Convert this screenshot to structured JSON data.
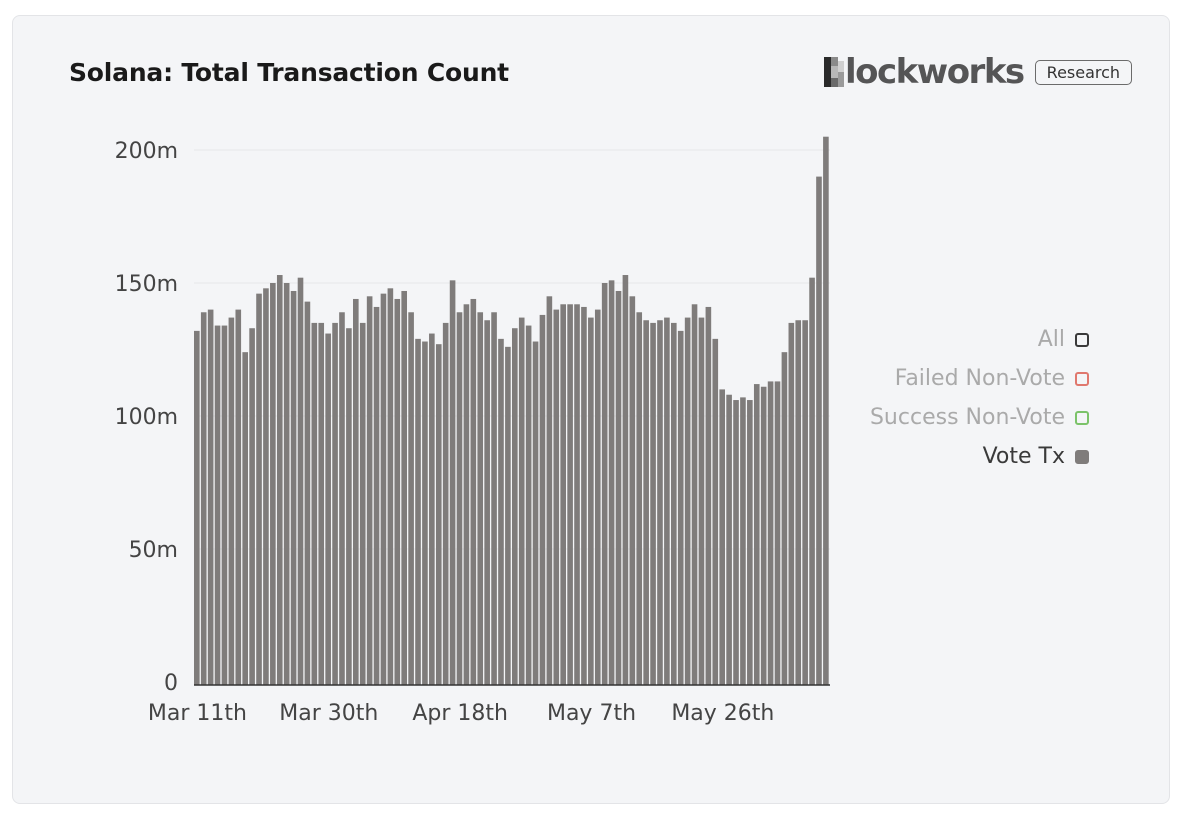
{
  "card": {
    "title": "Solana: Total Transaction Count"
  },
  "brand": {
    "logo_text": "lockworks",
    "logo_mark": "blockworks-b-mark",
    "badge": "Research"
  },
  "legend": [
    {
      "label": "All",
      "color": "#3a3a3a",
      "text_color": "#aaaaaa",
      "filled": false
    },
    {
      "label": "Failed Non-Vote",
      "color": "#e0786e",
      "text_color": "#aaaaaa",
      "filled": false
    },
    {
      "label": "Success Non-Vote",
      "color": "#7cc36a",
      "text_color": "#aaaaaa",
      "filled": false
    },
    {
      "label": "Vote Tx",
      "color": "#7f7c7b",
      "text_color": "#3a3a3a",
      "filled": true
    }
  ],
  "chart_data": {
    "type": "bar",
    "title": "Solana: Total Transaction Count",
    "xlabel": "",
    "ylabel": "",
    "ylim": [
      0,
      200
    ],
    "y_unit": "m",
    "y_ticks": [
      "0",
      "50m",
      "100m",
      "150m",
      "200m"
    ],
    "x_ticks": [
      {
        "label": "Mar 11th",
        "index": 0
      },
      {
        "label": "Mar 30th",
        "index": 19
      },
      {
        "label": "Apr 18th",
        "index": 38
      },
      {
        "label": "May 7th",
        "index": 57
      },
      {
        "label": "May 26th",
        "index": 76
      }
    ],
    "bar_color": "#7f7c7b",
    "grid": true,
    "legend_position": "right",
    "series": [
      {
        "name": "Vote Tx",
        "values": [
          132,
          139,
          140,
          134,
          134,
          137,
          140,
          124,
          133,
          146,
          148,
          150,
          153,
          150,
          147,
          152,
          143,
          135,
          135,
          131,
          135,
          139,
          133,
          144,
          135,
          145,
          141,
          146,
          148,
          144,
          147,
          139,
          129,
          128,
          131,
          127,
          135,
          151,
          139,
          142,
          144,
          139,
          136,
          139,
          129,
          126,
          133,
          137,
          134,
          128,
          138,
          145,
          140,
          142,
          142,
          142,
          141,
          137,
          140,
          150,
          151,
          147,
          153,
          145,
          139,
          136,
          135,
          136,
          137,
          135,
          132,
          137,
          142,
          137,
          141,
          129,
          110,
          108,
          106,
          107,
          106,
          112,
          111,
          113,
          113,
          124,
          135,
          136,
          136,
          152,
          190,
          205
        ]
      }
    ]
  }
}
